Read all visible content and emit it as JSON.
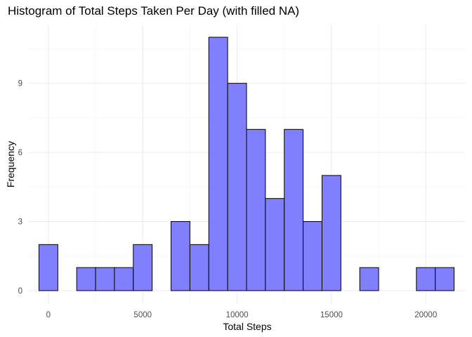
{
  "chart_data": {
    "type": "bar",
    "title": "Histogram of Total Steps Taken Per Day (with filled NA)",
    "xlabel": "Total Steps",
    "ylabel": "Frequency",
    "bin_width": 1000,
    "bins": [
      {
        "center": 0,
        "count": 2
      },
      {
        "center": 1000,
        "count": 0
      },
      {
        "center": 2000,
        "count": 1
      },
      {
        "center": 3000,
        "count": 1
      },
      {
        "center": 4000,
        "count": 1
      },
      {
        "center": 5000,
        "count": 2
      },
      {
        "center": 6000,
        "count": 0
      },
      {
        "center": 7000,
        "count": 3
      },
      {
        "center": 8000,
        "count": 2
      },
      {
        "center": 9000,
        "count": 11
      },
      {
        "center": 10000,
        "count": 9
      },
      {
        "center": 11000,
        "count": 7
      },
      {
        "center": 12000,
        "count": 4
      },
      {
        "center": 13000,
        "count": 7
      },
      {
        "center": 14000,
        "count": 3
      },
      {
        "center": 15000,
        "count": 5
      },
      {
        "center": 16000,
        "count": 0
      },
      {
        "center": 17000,
        "count": 1
      },
      {
        "center": 18000,
        "count": 0
      },
      {
        "center": 19000,
        "count": 0
      },
      {
        "center": 20000,
        "count": 1
      },
      {
        "center": 21000,
        "count": 1
      }
    ],
    "x_ticks": [
      0,
      5000,
      10000,
      15000,
      20000
    ],
    "y_ticks": [
      0,
      3,
      6,
      9
    ],
    "xlim": [
      -1075,
      22075
    ],
    "ylim": [
      -0.55,
      11.55
    ],
    "grid": true,
    "bar_fill": "#8080ff",
    "bar_stroke": "#000000"
  }
}
